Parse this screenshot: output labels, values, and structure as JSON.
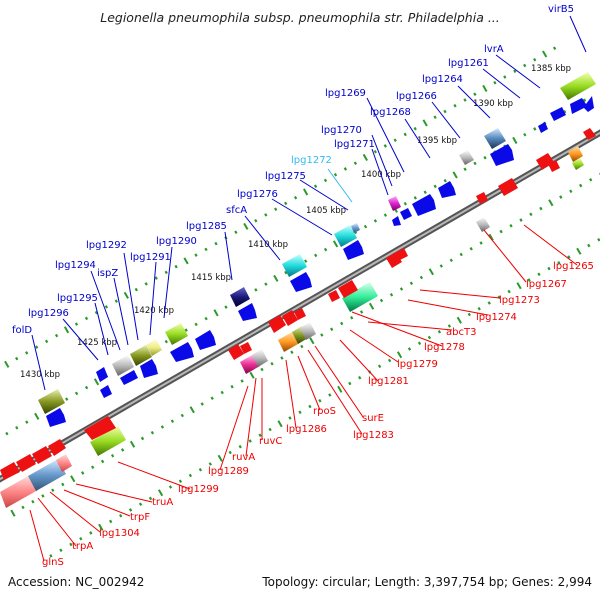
{
  "title": "Legionella pneumophila subsp. pneumophila str. Philadelphia ...",
  "footer": {
    "accession": "Accession: NC_002942",
    "summary": "Topology: circular; Length: 3,397,754 bp; Genes: 2,994"
  },
  "colors": {
    "backbone": "#7a7a7a",
    "forward_arrow": "#0a0ae8",
    "reverse_arrow": "#ee1111",
    "dots": "#2a9a2a",
    "blue_label": "#0000cc",
    "red_label": "#ee0000",
    "cyan_label": "#33bbee"
  },
  "scale_labels": [
    "1385 kbp",
    "1390 kbp",
    "1395 kbp",
    "1400 kbp",
    "1405 kbp",
    "1410 kbp",
    "1415 kbp",
    "1420 kbp",
    "1425 kbp",
    "1430 kbp"
  ],
  "top_labels": [
    {
      "text": "virB5",
      "color": "blue"
    },
    {
      "text": "lvrA",
      "color": "blue"
    },
    {
      "text": "lpg1261",
      "color": "blue"
    },
    {
      "text": "lpg1264",
      "color": "blue"
    },
    {
      "text": "lpg1266",
      "color": "blue"
    },
    {
      "text": "lpg1268",
      "color": "blue"
    },
    {
      "text": "lpg1269",
      "color": "blue"
    },
    {
      "text": "lpg1270",
      "color": "blue"
    },
    {
      "text": "lpg1271",
      "color": "blue"
    },
    {
      "text": "lpg1272",
      "color": "cyan"
    },
    {
      "text": "lpg1275",
      "color": "blue"
    },
    {
      "text": "lpg1276",
      "color": "blue"
    },
    {
      "text": "sfcA",
      "color": "blue"
    },
    {
      "text": "lpg1285",
      "color": "blue"
    },
    {
      "text": "lpg1290",
      "color": "blue"
    },
    {
      "text": "lpg1291",
      "color": "blue"
    },
    {
      "text": "lpg1292",
      "color": "blue"
    },
    {
      "text": "ispZ",
      "color": "blue"
    },
    {
      "text": "lpg1294",
      "color": "blue"
    },
    {
      "text": "lpg1295",
      "color": "blue"
    },
    {
      "text": "lpg1296",
      "color": "blue"
    },
    {
      "text": "folD",
      "color": "blue"
    }
  ],
  "bottom_labels": [
    {
      "text": "lpg1265",
      "color": "red"
    },
    {
      "text": "lpg1267",
      "color": "red"
    },
    {
      "text": "lpg1273",
      "color": "red"
    },
    {
      "text": "lpg1274",
      "color": "red"
    },
    {
      "text": "abcT3",
      "color": "red"
    },
    {
      "text": "lpg1278",
      "color": "red"
    },
    {
      "text": "lpg1279",
      "color": "red"
    },
    {
      "text": "lpg1281",
      "color": "red"
    },
    {
      "text": "surE",
      "color": "red"
    },
    {
      "text": "lpg1283",
      "color": "red"
    },
    {
      "text": "rpoS",
      "color": "red"
    },
    {
      "text": "lpg1286",
      "color": "red"
    },
    {
      "text": "ruvC",
      "color": "red"
    },
    {
      "text": "ruvA",
      "color": "red"
    },
    {
      "text": "lpg1289",
      "color": "red"
    },
    {
      "text": "lpg1299",
      "color": "red"
    },
    {
      "text": "truA",
      "color": "red"
    },
    {
      "text": "trpF",
      "color": "red"
    },
    {
      "text": "lpg1304",
      "color": "red"
    },
    {
      "text": "trpA",
      "color": "red"
    },
    {
      "text": "glnS",
      "color": "red"
    }
  ]
}
